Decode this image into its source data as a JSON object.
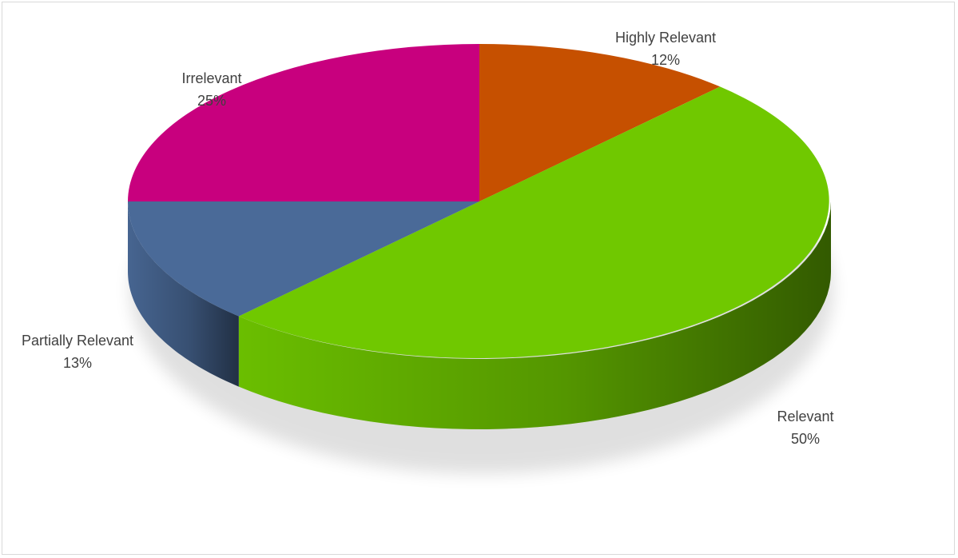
{
  "chart_data": {
    "type": "pie",
    "style": "3d",
    "title": "",
    "slices": [
      {
        "label": "Highly Relevant",
        "value": 12,
        "value_label": "12%",
        "color": "#C65000"
      },
      {
        "label": "Relevant",
        "value": 50,
        "value_label": "50%",
        "color": "#70C800"
      },
      {
        "label": "Partially Relevant",
        "value": 13,
        "value_label": "13%",
        "color": "#4A6A98"
      },
      {
        "label": "Irrelevant",
        "value": 25,
        "value_label": "25%",
        "color": "#C8007E"
      }
    ]
  }
}
